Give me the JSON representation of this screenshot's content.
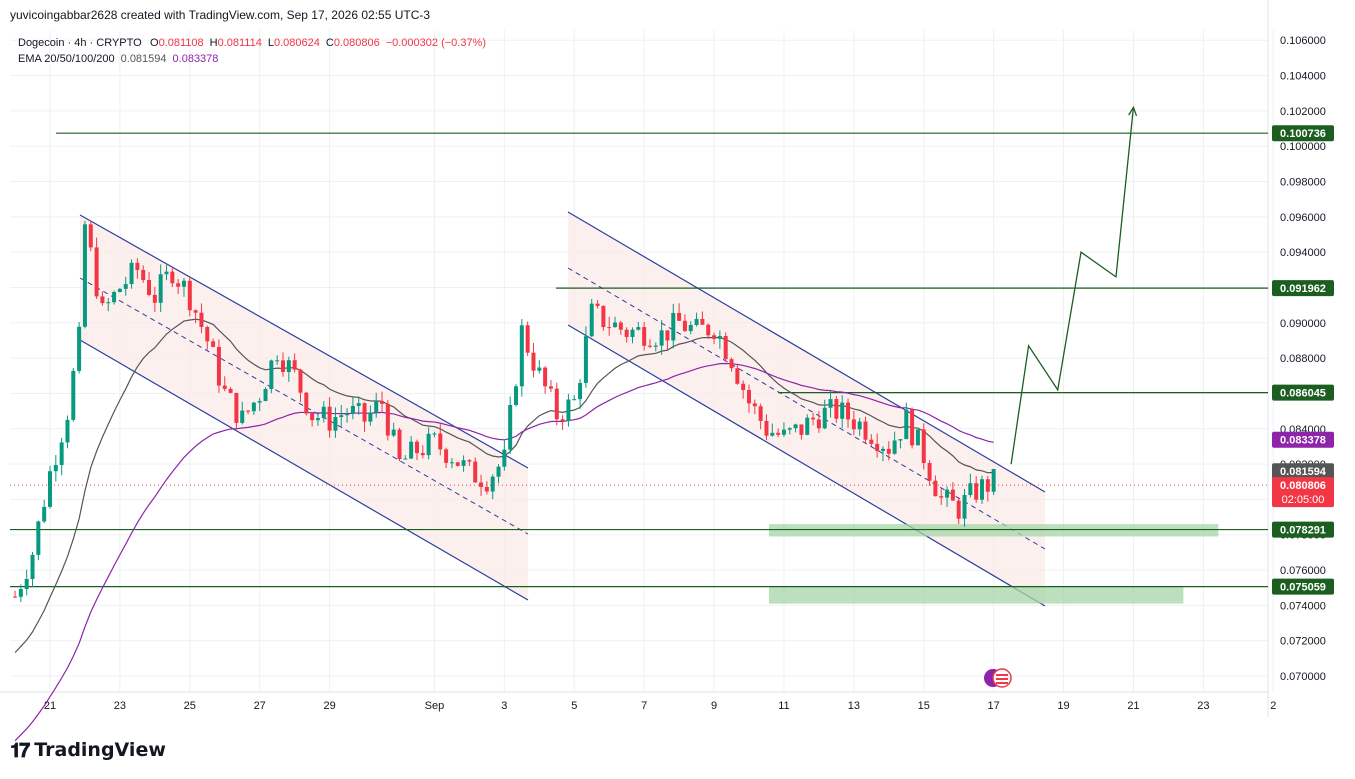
{
  "header": {
    "credit": "yuvicoingabbar2628 created with TradingView.com, Sep 17, 2026 02:55 UTC-3"
  },
  "legend": {
    "symbol": "Dogecoin · 4h · CRYPTO",
    "o_label": "O",
    "o_value": "0.081108",
    "h_label": "H",
    "h_value": "0.081114",
    "l_label": "L",
    "l_value": "0.080624",
    "c_label": "C",
    "c_value": "0.080806",
    "change": "−0.000302 (−0.37%)",
    "ema_label": "EMA 20/50/100/200",
    "ema_val1": "0.081594",
    "ema_val2": "0.083378"
  },
  "footer": {
    "logo_text": "TradingView"
  },
  "colors": {
    "up": "#089981",
    "down": "#f23645",
    "channel": "#2a3f9e",
    "level": "#1b5e20",
    "ema_fast": "#555555",
    "ema_slow": "#8e24aa",
    "zone": "#a5d6a7",
    "channel_fill": "#fbe9e7"
  },
  "chart_data": {
    "type": "candlestick",
    "symbol": "Dogecoin",
    "timeframe": "4h",
    "ylim": [
      0.069,
      0.107
    ],
    "y_ticks": [
      "0.106000",
      "0.104000",
      "0.102000",
      "0.100000",
      "0.098000",
      "0.096000",
      "0.094000",
      "0.092000",
      "0.090000",
      "0.088000",
      "0.086000",
      "0.084000",
      "0.082000",
      "0.080000",
      "0.078000",
      "0.076000",
      "0.074000",
      "0.072000",
      "0.070000"
    ],
    "x_ticks": [
      {
        "label": "21",
        "date": "Aug 21"
      },
      {
        "label": "23",
        "date": "Aug 23"
      },
      {
        "label": "25",
        "date": "Aug 25"
      },
      {
        "label": "27",
        "date": "Aug 27"
      },
      {
        "label": "29",
        "date": "Aug 29"
      },
      {
        "label": "Sep",
        "date": "Sep 1"
      },
      {
        "label": "3",
        "date": "Sep 3"
      },
      {
        "label": "5",
        "date": "Sep 5"
      },
      {
        "label": "7",
        "date": "Sep 7"
      },
      {
        "label": "9",
        "date": "Sep 9"
      },
      {
        "label": "11",
        "date": "Sep 11"
      },
      {
        "label": "13",
        "date": "Sep 13"
      },
      {
        "label": "15",
        "date": "Sep 15"
      },
      {
        "label": "17",
        "date": "Sep 17"
      },
      {
        "label": "19",
        "date": "Sep 19"
      },
      {
        "label": "21",
        "date": "Sep 21"
      },
      {
        "label": "23",
        "date": "Sep 23"
      },
      {
        "label": "2",
        "date": "Sep 25"
      }
    ],
    "close_path": [
      [
        "Aug 20 00:00",
        0.0745
      ],
      [
        "Aug 20 12:00",
        0.077
      ],
      [
        "Aug 21 00:00",
        0.0815
      ],
      [
        "Aug 21 12:00",
        0.085
      ],
      [
        "Aug 21 20:00",
        0.089
      ],
      [
        "Aug 22 00:00",
        0.0955
      ],
      [
        "Aug 22 12:00",
        0.0905
      ],
      [
        "Aug 23 00:00",
        0.092
      ],
      [
        "Aug 23 12:00",
        0.093
      ],
      [
        "Aug 24 00:00",
        0.0915
      ],
      [
        "Aug 24 12:00",
        0.093
      ],
      [
        "Aug 25 00:00",
        0.0915
      ],
      [
        "Aug 25 12:00",
        0.089
      ],
      [
        "Aug 26 00:00",
        0.086
      ],
      [
        "Aug 26 12:00",
        0.0845
      ],
      [
        "Aug 27 00:00",
        0.086
      ],
      [
        "Aug 27 12:00",
        0.0885
      ],
      [
        "Aug 28 00:00",
        0.087
      ],
      [
        "Aug 28 12:00",
        0.0848
      ],
      [
        "Aug 29 00:00",
        0.0845
      ],
      [
        "Aug 29 12:00",
        0.085
      ],
      [
        "Aug 30 00:00",
        0.0845
      ],
      [
        "Aug 30 12:00",
        0.0855
      ],
      [
        "Aug 31 00:00",
        0.082
      ],
      [
        "Aug 31 12:00",
        0.0828
      ],
      [
        "Sep 1 00:00",
        0.0832
      ],
      [
        "Sep 1 12:00",
        0.0825
      ],
      [
        "Sep 2 00:00",
        0.0815
      ],
      [
        "Sep 2 12:00",
        0.0812
      ],
      [
        "Sep 3 00:00",
        0.0822
      ],
      [
        "Sep 3 12:00",
        0.0895
      ],
      [
        "Sep 4 00:00",
        0.087
      ],
      [
        "Sep 4 12:00",
        0.0848
      ],
      [
        "Sep 5 00:00",
        0.0855
      ],
      [
        "Sep 5 12:00",
        0.0905
      ],
      [
        "Sep 6 00:00",
        0.09
      ],
      [
        "Sep 6 12:00",
        0.0895
      ],
      [
        "Sep 7 00:00",
        0.0895
      ],
      [
        "Sep 7 12:00",
        0.0893
      ],
      [
        "Sep 8 00:00",
        0.09
      ],
      [
        "Sep 8 12:00",
        0.0895
      ],
      [
        "Sep 9 00:00",
        0.0898
      ],
      [
        "Sep 9 12:00",
        0.088
      ],
      [
        "Sep 10 00:00",
        0.0855
      ],
      [
        "Sep 10 12:00",
        0.084
      ],
      [
        "Sep 11 00:00",
        0.0835
      ],
      [
        "Sep 11 12:00",
        0.084
      ],
      [
        "Sep 12 00:00",
        0.0848
      ],
      [
        "Sep 12 12:00",
        0.085
      ],
      [
        "Sep 13 00:00",
        0.0845
      ],
      [
        "Sep 13 12:00",
        0.0838
      ],
      [
        "Sep 14 00:00",
        0.083
      ],
      [
        "Sep 14 12:00",
        0.0845
      ],
      [
        "Sep 15 00:00",
        0.0825
      ],
      [
        "Sep 15 12:00",
        0.08
      ],
      [
        "Sep 16 00:00",
        0.0795
      ],
      [
        "Sep 16 12:00",
        0.0805
      ],
      [
        "Sep 17 00:00",
        0.081
      ],
      [
        "Sep 17 02:55",
        0.0808
      ]
    ],
    "ema_fast": {
      "name": "EMA",
      "value_label": "0.081594"
    },
    "ema_slow": {
      "name": "EMA",
      "value_label": "0.083378"
    },
    "horizontal_levels": [
      {
        "value": 0.100736,
        "label": "0.100736"
      },
      {
        "value": 0.091962,
        "label": "0.091962"
      },
      {
        "value": 0.086045,
        "label": "0.086045"
      },
      {
        "value": 0.078291,
        "label": "0.078291"
      },
      {
        "value": 0.075059,
        "label": "0.075059"
      }
    ],
    "axis_badges": [
      {
        "value": 0.083378,
        "label": "0.083378",
        "color": "#8e24aa"
      },
      {
        "value": 0.081594,
        "label": "0.081594",
        "color": "#555555"
      },
      {
        "value": 0.080806,
        "label": "0.080806",
        "sublabel": "02:05:00",
        "color": "#f23645"
      }
    ],
    "demand_zones": [
      {
        "from": 0.0779,
        "to": 0.0786,
        "start": "Sep 11",
        "end": "Sep 23"
      },
      {
        "from": 0.0741,
        "to": 0.0751,
        "start": "Sep 11",
        "end": "Sep 22"
      }
    ],
    "projection_path": [
      [
        "Sep 17 12:00",
        0.082
      ],
      [
        "Sep 18 00:00",
        0.0887
      ],
      [
        "Sep 18 20:00",
        0.0862
      ],
      [
        "Sep 19 12:00",
        0.094
      ],
      [
        "Sep 20 12:00",
        0.0926
      ],
      [
        "Sep 21 00:00",
        0.1022
      ]
    ],
    "last_price": 0.080806,
    "grid": true
  }
}
